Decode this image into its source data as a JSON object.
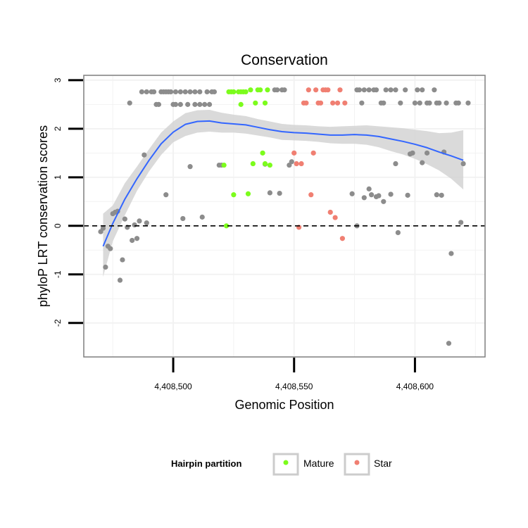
{
  "chart_data": {
    "type": "scatter",
    "title": "Conservation",
    "xlabel": "Genomic Position",
    "ylabel": "phyloP LRT conservation scores",
    "xlim": [
      4408463,
      4408629
    ],
    "ylim": [
      -2.7,
      3.1
    ],
    "xticks": [
      4408500,
      4408550,
      4408600
    ],
    "xtick_labels": [
      "4,408,500",
      "4,408,550",
      "4,408,600"
    ],
    "yticks": [
      -2,
      -1,
      0,
      1,
      2,
      3
    ],
    "ytick_labels": [
      "-2",
      "-1",
      "0",
      "1",
      "2",
      "3"
    ],
    "reference_line": {
      "y": 0,
      "style": "dashed"
    },
    "grid": true,
    "colors": {
      "other": "#8c8c8c",
      "Mature": "#7cfc1c",
      "Star": "#f07f72",
      "smooth_line": "#3366ff",
      "ribbon": "#d3d3d3",
      "grid": "#f2f2f2",
      "frame": "#7f7f7f"
    },
    "legend": {
      "title": "Hairpin partition",
      "position": "bottom",
      "entries": [
        {
          "name": "Mature",
          "color": "#7cfc1c"
        },
        {
          "name": "Star",
          "color": "#f07f72"
        }
      ]
    },
    "smooth": [
      {
        "x": 4408471,
        "y": -0.42,
        "lo": -1.05,
        "hi": 0.25
      },
      {
        "x": 4408475,
        "y": 0.05,
        "lo": -0.32,
        "hi": 0.42
      },
      {
        "x": 4408480,
        "y": 0.55,
        "lo": 0.22,
        "hi": 0.88
      },
      {
        "x": 4408485,
        "y": 0.97,
        "lo": 0.72,
        "hi": 1.22
      },
      {
        "x": 4408490,
        "y": 1.35,
        "lo": 1.12,
        "hi": 1.58
      },
      {
        "x": 4408495,
        "y": 1.69,
        "lo": 1.46,
        "hi": 1.92
      },
      {
        "x": 4408500,
        "y": 1.93,
        "lo": 1.72,
        "hi": 2.15
      },
      {
        "x": 4408505,
        "y": 2.09,
        "lo": 1.85,
        "hi": 2.32
      },
      {
        "x": 4408510,
        "y": 2.15,
        "lo": 1.92,
        "hi": 2.38
      },
      {
        "x": 4408515,
        "y": 2.16,
        "lo": 1.94,
        "hi": 2.39
      },
      {
        "x": 4408520,
        "y": 2.12,
        "lo": 1.92,
        "hi": 2.33
      },
      {
        "x": 4408525,
        "y": 2.1,
        "lo": 1.92,
        "hi": 2.29
      },
      {
        "x": 4408530,
        "y": 2.08,
        "lo": 1.9,
        "hi": 2.26
      },
      {
        "x": 4408535,
        "y": 2.03,
        "lo": 1.86,
        "hi": 2.2
      },
      {
        "x": 4408540,
        "y": 1.98,
        "lo": 1.82,
        "hi": 2.15
      },
      {
        "x": 4408545,
        "y": 1.94,
        "lo": 1.77,
        "hi": 2.1
      },
      {
        "x": 4408550,
        "y": 1.92,
        "lo": 1.76,
        "hi": 2.08
      },
      {
        "x": 4408555,
        "y": 1.91,
        "lo": 1.75,
        "hi": 2.07
      },
      {
        "x": 4408560,
        "y": 1.89,
        "lo": 1.73,
        "hi": 2.05
      },
      {
        "x": 4408565,
        "y": 1.87,
        "lo": 1.7,
        "hi": 2.04
      },
      {
        "x": 4408570,
        "y": 1.87,
        "lo": 1.69,
        "hi": 2.05
      },
      {
        "x": 4408575,
        "y": 1.88,
        "lo": 1.69,
        "hi": 2.06
      },
      {
        "x": 4408580,
        "y": 1.87,
        "lo": 1.67,
        "hi": 2.07
      },
      {
        "x": 4408585,
        "y": 1.84,
        "lo": 1.62,
        "hi": 2.05
      },
      {
        "x": 4408590,
        "y": 1.79,
        "lo": 1.54,
        "hi": 2.03
      },
      {
        "x": 4408595,
        "y": 1.74,
        "lo": 1.47,
        "hi": 2.01
      },
      {
        "x": 4408600,
        "y": 1.68,
        "lo": 1.38,
        "hi": 1.98
      },
      {
        "x": 4408605,
        "y": 1.61,
        "lo": 1.27,
        "hi": 1.95
      },
      {
        "x": 4408610,
        "y": 1.52,
        "lo": 1.14,
        "hi": 1.91
      },
      {
        "x": 4408615,
        "y": 1.44,
        "lo": 0.97,
        "hi": 1.92
      },
      {
        "x": 4408620,
        "y": 1.35,
        "lo": 0.75,
        "hi": 1.97
      }
    ],
    "series": [
      {
        "name": "other",
        "points": [
          [
            4408470,
            -0.12
          ],
          [
            4408471,
            -0.05
          ],
          [
            4408472,
            -0.85
          ],
          [
            4408473,
            -0.42
          ],
          [
            4408474,
            -0.47
          ],
          [
            4408475,
            0.25
          ],
          [
            4408476,
            0.28
          ],
          [
            4408477,
            0.3
          ],
          [
            4408478,
            -1.12
          ],
          [
            4408479,
            -0.7
          ],
          [
            4408480,
            0.14
          ],
          [
            4408481,
            -0.03
          ],
          [
            4408482,
            2.53
          ],
          [
            4408483,
            -0.3
          ],
          [
            4408484,
            0.02
          ],
          [
            4408485,
            -0.26
          ],
          [
            4408486,
            0.1
          ],
          [
            4408487,
            2.76
          ],
          [
            4408488,
            1.46
          ],
          [
            4408489,
            0.06
          ],
          [
            4408489,
            2.76
          ],
          [
            4408491,
            2.76
          ],
          [
            4408492,
            2.76
          ],
          [
            4408493,
            2.5
          ],
          [
            4408494,
            2.5
          ],
          [
            4408495,
            2.76
          ],
          [
            4408496,
            2.76
          ],
          [
            4408497,
            2.76
          ],
          [
            4408497,
            0.64
          ],
          [
            4408498,
            2.76
          ],
          [
            4408499,
            2.76
          ],
          [
            4408500,
            2.5
          ],
          [
            4408501,
            2.76
          ],
          [
            4408501,
            2.5
          ],
          [
            4408503,
            2.76
          ],
          [
            4408503,
            2.5
          ],
          [
            4408504,
            0.15
          ],
          [
            4408505,
            2.76
          ],
          [
            4408506,
            2.5
          ],
          [
            4408507,
            2.76
          ],
          [
            4408507,
            1.22
          ],
          [
            4408509,
            2.76
          ],
          [
            4408509,
            2.5
          ],
          [
            4408511,
            2.76
          ],
          [
            4408511,
            2.5
          ],
          [
            4408512,
            0.18
          ],
          [
            4408513,
            2.5
          ],
          [
            4408514,
            2.76
          ],
          [
            4408515,
            2.5
          ],
          [
            4408516,
            2.76
          ],
          [
            4408517,
            2.76
          ],
          [
            4408519,
            1.25
          ],
          [
            4408520,
            1.25
          ],
          [
            4408538,
            1.27
          ],
          [
            4408540,
            0.68
          ],
          [
            4408542,
            2.8
          ],
          [
            4408543,
            2.8
          ],
          [
            4408544,
            0.67
          ],
          [
            4408545,
            2.8
          ],
          [
            4408546,
            2.8
          ],
          [
            4408548,
            1.25
          ],
          [
            4408549,
            1.32
          ],
          [
            4408574,
            0.66
          ],
          [
            4408576,
            2.8
          ],
          [
            4408576,
            0.0
          ],
          [
            4408577,
            2.8
          ],
          [
            4408578,
            2.53
          ],
          [
            4408579,
            2.8
          ],
          [
            4408579,
            0.58
          ],
          [
            4408581,
            2.8
          ],
          [
            4408581,
            0.76
          ],
          [
            4408582,
            0.64
          ],
          [
            4408583,
            2.8
          ],
          [
            4408584,
            2.8
          ],
          [
            4408584,
            0.6
          ],
          [
            4408585,
            0.62
          ],
          [
            4408586,
            2.53
          ],
          [
            4408587,
            2.53
          ],
          [
            4408587,
            0.5
          ],
          [
            4408588,
            2.8
          ],
          [
            4408590,
            2.8
          ],
          [
            4408590,
            0.65
          ],
          [
            4408592,
            2.8
          ],
          [
            4408592,
            1.28
          ],
          [
            4408593,
            -0.14
          ],
          [
            4408594,
            2.53
          ],
          [
            4408596,
            2.8
          ],
          [
            4408597,
            0.63
          ],
          [
            4408598,
            1.48
          ],
          [
            4408599,
            1.5
          ],
          [
            4408600,
            2.53
          ],
          [
            4408601,
            2.8
          ],
          [
            4408602,
            2.53
          ],
          [
            4408603,
            2.8
          ],
          [
            4408603,
            1.3
          ],
          [
            4408605,
            2.53
          ],
          [
            4408605,
            1.5
          ],
          [
            4408606,
            2.53
          ],
          [
            4408608,
            2.8
          ],
          [
            4408609,
            2.53
          ],
          [
            4408609,
            0.64
          ],
          [
            4408610,
            2.53
          ],
          [
            4408611,
            0.63
          ],
          [
            4408612,
            1.52
          ],
          [
            4408613,
            2.53
          ],
          [
            4408614,
            -2.42
          ],
          [
            4408615,
            -0.57
          ],
          [
            4408617,
            2.53
          ],
          [
            4408618,
            2.53
          ],
          [
            4408619,
            0.07
          ],
          [
            4408620,
            1.28
          ],
          [
            4408622,
            2.53
          ]
        ]
      },
      {
        "name": "Mature",
        "points": [
          [
            4408521,
            1.25
          ],
          [
            4408522,
            0.0
          ],
          [
            4408523,
            2.76
          ],
          [
            4408524,
            2.76
          ],
          [
            4408525,
            2.76
          ],
          [
            4408525,
            0.64
          ],
          [
            4408527,
            2.76
          ],
          [
            4408528,
            2.76
          ],
          [
            4408528,
            2.5
          ],
          [
            4408529,
            2.76
          ],
          [
            4408530,
            2.76
          ],
          [
            4408531,
            0.66
          ],
          [
            4408532,
            2.8
          ],
          [
            4408533,
            1.28
          ],
          [
            4408534,
            2.53
          ],
          [
            4408535,
            2.8
          ],
          [
            4408536,
            2.8
          ],
          [
            4408537,
            1.5
          ],
          [
            4408538,
            2.53
          ],
          [
            4408538,
            1.28
          ],
          [
            4408539,
            2.8
          ],
          [
            4408540,
            1.25
          ]
        ]
      },
      {
        "name": "Star",
        "points": [
          [
            4408550,
            1.5
          ],
          [
            4408551,
            1.28
          ],
          [
            4408552,
            -0.03
          ],
          [
            4408553,
            1.28
          ],
          [
            4408554,
            2.53
          ],
          [
            4408555,
            2.53
          ],
          [
            4408556,
            2.8
          ],
          [
            4408557,
            0.64
          ],
          [
            4408558,
            1.5
          ],
          [
            4408559,
            2.8
          ],
          [
            4408560,
            2.53
          ],
          [
            4408561,
            2.53
          ],
          [
            4408562,
            2.8
          ],
          [
            4408563,
            2.8
          ],
          [
            4408564,
            2.8
          ],
          [
            4408565,
            0.28
          ],
          [
            4408566,
            2.53
          ],
          [
            4408567,
            0.17
          ],
          [
            4408568,
            2.53
          ],
          [
            4408569,
            2.8
          ],
          [
            4408570,
            -0.26
          ],
          [
            4408571,
            2.53
          ]
        ]
      }
    ]
  }
}
